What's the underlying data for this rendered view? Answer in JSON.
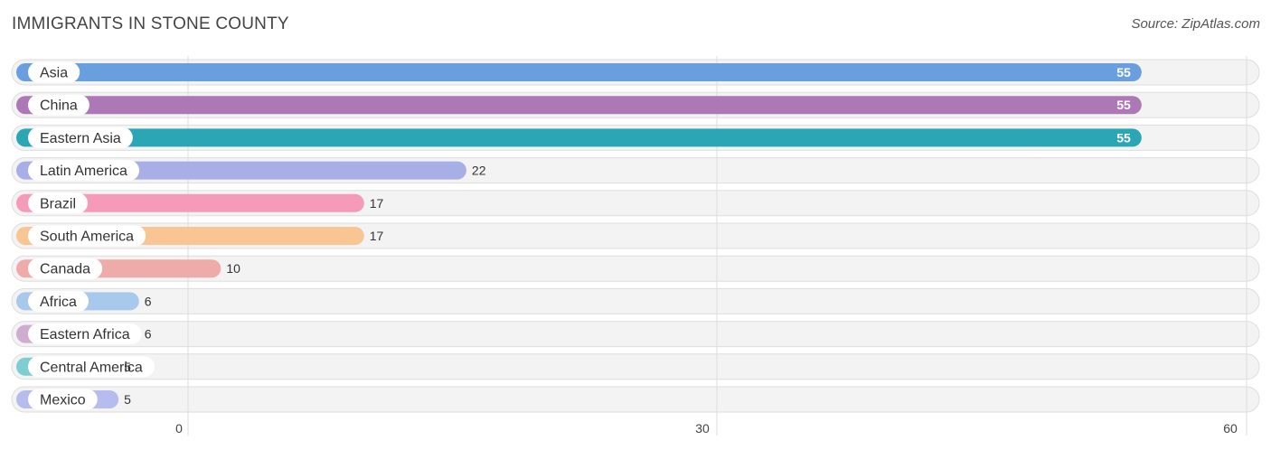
{
  "header": {
    "title": "IMMIGRANTS IN STONE COUNTY",
    "source": "Source: ZipAtlas.com"
  },
  "chart_data": {
    "type": "bar",
    "orientation": "horizontal",
    "title": "IMMIGRANTS IN STONE COUNTY",
    "xlabel": "",
    "ylabel": "",
    "xlim": [
      0,
      60
    ],
    "ticks": [
      0,
      30,
      60
    ],
    "grid": true,
    "categories": [
      "Asia",
      "China",
      "Eastern Asia",
      "Latin America",
      "Brazil",
      "South America",
      "Canada",
      "Africa",
      "Eastern Africa",
      "Central America",
      "Mexico"
    ],
    "values": [
      55,
      55,
      55,
      22,
      17,
      17,
      10,
      6,
      6,
      5,
      5
    ],
    "colors": [
      "#6a9fdf",
      "#ac78b6",
      "#2aa6b4",
      "#a8afe6",
      "#f59ab8",
      "#f9c592",
      "#efaaaa",
      "#a8c8ec",
      "#cfadd0",
      "#7fcdd3",
      "#b6bdee"
    ]
  }
}
